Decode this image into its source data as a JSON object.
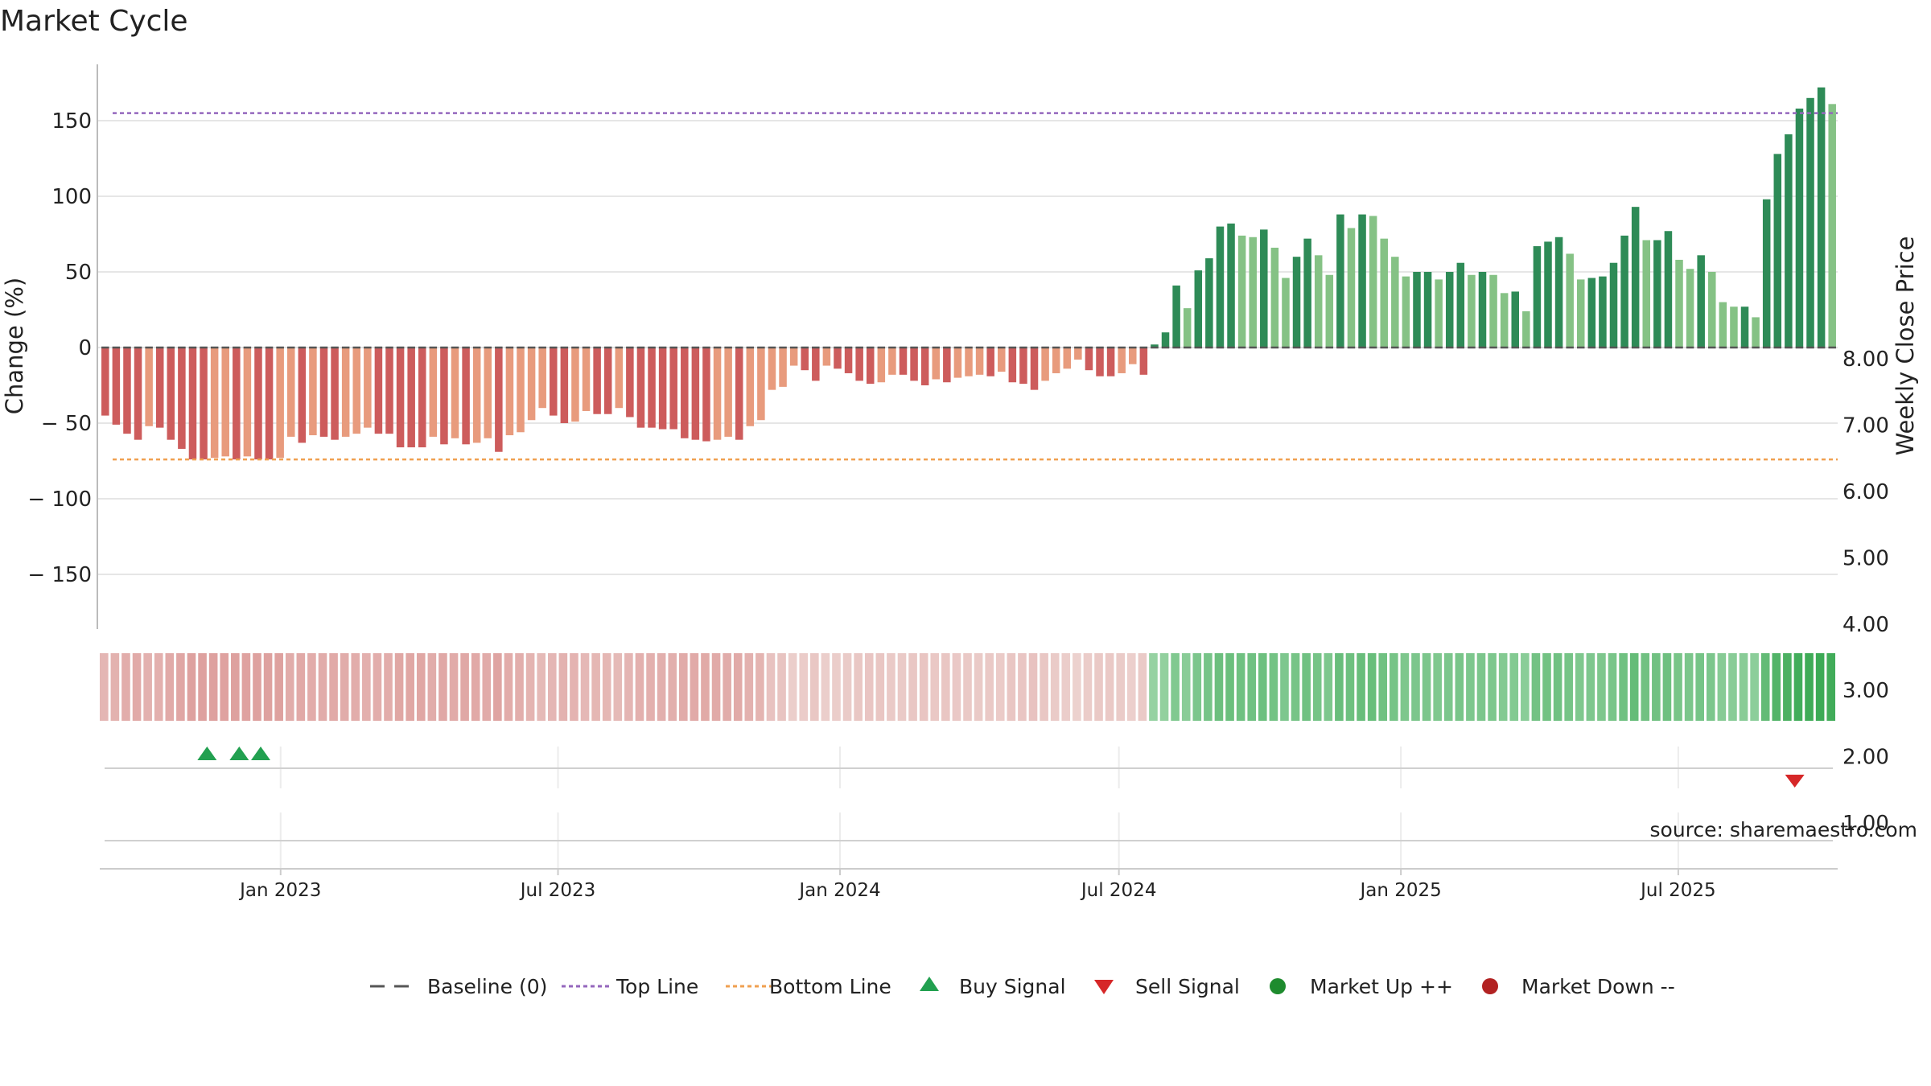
{
  "chart_data": {
    "type": "bar",
    "title": "Market Cycle",
    "ylabel": "Change (%)",
    "y2label": "Weekly Close Price",
    "ylim": [
      -187,
      187
    ],
    "y2lim": [
      0.4,
      9.05
    ],
    "yticks": [
      150,
      100,
      50,
      0,
      -50,
      -100,
      -150
    ],
    "ytick_labels": [
      "150",
      "100",
      "50",
      "0",
      "− 50",
      "− 100",
      "− 150"
    ],
    "y2ticks": [
      8,
      7,
      6,
      5,
      4,
      3,
      2,
      1
    ],
    "y2tick_labels": [
      "8.00",
      "7.00",
      "6.00",
      "5.00",
      "4.00",
      "3.00",
      "2.00",
      "1.00"
    ],
    "x_start": "2022-09-05",
    "x_end": "2025-10-13",
    "xticks": [
      "2023-01-01",
      "2023-07-01",
      "2024-01-01",
      "2024-07-01",
      "2025-01-01",
      "2025-07-01"
    ],
    "xtick_labels": [
      "Jan 2023",
      "Jul 2023",
      "Jan 2024",
      "Jul 2024",
      "Jan 2025",
      "Jul 2025"
    ],
    "top_line": 155,
    "bottom_line": -74,
    "baseline": 0,
    "values": [
      -45,
      -51,
      -57,
      -61,
      -52,
      -53,
      -61,
      -67,
      -74,
      -74,
      -73,
      -72,
      -74,
      -72,
      -74,
      -74,
      -73,
      -59,
      -63,
      -58,
      -59,
      -61,
      -59,
      -57,
      -53,
      -57,
      -57,
      -66,
      -66,
      -66,
      -59,
      -64,
      -60,
      -64,
      -63,
      -60,
      -69,
      -58,
      -56,
      -48,
      -40,
      -45,
      -50,
      -49,
      -42,
      -44,
      -44,
      -40,
      -46,
      -53,
      -53,
      -54,
      -54,
      -60,
      -61,
      -62,
      -61,
      -59,
      -61,
      -52,
      -48,
      -28,
      -26,
      -12,
      -15,
      -22,
      -12,
      -14,
      -17,
      -22,
      -24,
      -23,
      -18,
      -18,
      -22,
      -25,
      -21,
      -23,
      -20,
      -19,
      -18,
      -19,
      -16,
      -23,
      -24,
      -28,
      -22,
      -17,
      -14,
      -8,
      -15,
      -19,
      -19,
      -17,
      -11,
      -18,
      2,
      10,
      41,
      26,
      51,
      59,
      80,
      82,
      74,
      73,
      78,
      66,
      46,
      60,
      72,
      61,
      48,
      88,
      79,
      88,
      87,
      72,
      60,
      47,
      50,
      50,
      45,
      50,
      56,
      48,
      50,
      48,
      36,
      37,
      24,
      67,
      70,
      73,
      62,
      45,
      46,
      47,
      56,
      74,
      93,
      71,
      71,
      77,
      58,
      52,
      61,
      50,
      30,
      27,
      27,
      20,
      98,
      128,
      141,
      158,
      165,
      172,
      161
    ],
    "heat_strip": "color band reflecting cycle phase",
    "buy_signal_dates": [
      "2022-11-14",
      "2022-12-05",
      "2022-12-19"
    ],
    "sell_signal_dates": [
      "2025-09-15"
    ],
    "annotation": "source: sharemaestro.com",
    "legend": [
      {
        "label": "Baseline (0)",
        "marker": "dash-line",
        "color": "#555555"
      },
      {
        "label": "Top Line",
        "marker": "dotted-line",
        "color": "#9467bd"
      },
      {
        "label": "Bottom Line",
        "marker": "dotted-line",
        "color": "#f0a050"
      },
      {
        "label": "Buy Signal",
        "marker": "triangle-up",
        "color": "#22a050"
      },
      {
        "label": "Sell Signal",
        "marker": "triangle-down",
        "color": "#d62728"
      },
      {
        "label": "Market Up ++",
        "marker": "circle",
        "color": "#1e8b2e"
      },
      {
        "label": "Market Down --",
        "marker": "circle",
        "color": "#b22222"
      }
    ],
    "legend_position": "bottom-center",
    "colors": {
      "strong_down": "#cd5c5c",
      "weak_down": "#e89b7d",
      "strong_up": "#2e8b57",
      "weak_up": "#85c285",
      "top_line": "#9467bd",
      "bottom_line": "#f0a050",
      "buy": "#22a050",
      "sell": "#d62728"
    },
    "grid": true
  }
}
